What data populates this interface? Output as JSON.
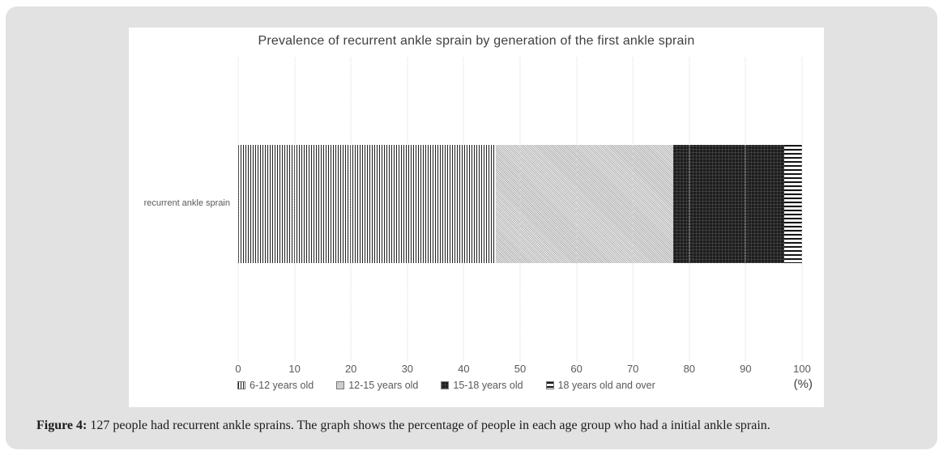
{
  "chart_data": {
    "type": "bar",
    "subtype": "stacked-horizontal",
    "title": "Prevalence of recurrent ankle sprain by generation of the first ankle sprain",
    "categories": [
      "recurrent ankle sprain"
    ],
    "series": [
      {
        "name": "6-12 years old",
        "values": [
          45.7
        ],
        "pattern": "vertical-stripes"
      },
      {
        "name": "12-15 years old",
        "values": [
          31.5
        ],
        "pattern": "light-dots"
      },
      {
        "name": "15-18 years old",
        "values": [
          19.7
        ],
        "pattern": "dark-crosshatch"
      },
      {
        "name": "18 years old and over",
        "values": [
          3.1
        ],
        "pattern": "horizontal-stripes"
      }
    ],
    "xlim": [
      0,
      100
    ],
    "x_ticks": [
      0,
      10,
      20,
      30,
      40,
      50,
      60,
      70,
      80,
      90,
      100
    ],
    "x_unit_label": "(%)",
    "grid": "vertical-dotted",
    "legend_position": "bottom",
    "colors": {
      "title_text": "#3f3f3f",
      "axis_text": "#595959",
      "gridline": "#d9d9d9",
      "panel_background": "#e2e2e2",
      "chart_background": "#ffffff"
    }
  },
  "figure": {
    "caption_label": "Figure 4:",
    "caption_text": "127 people had recurrent ankle sprains. The graph shows the percentage of people in each age group who had a initial ankle sprain."
  }
}
